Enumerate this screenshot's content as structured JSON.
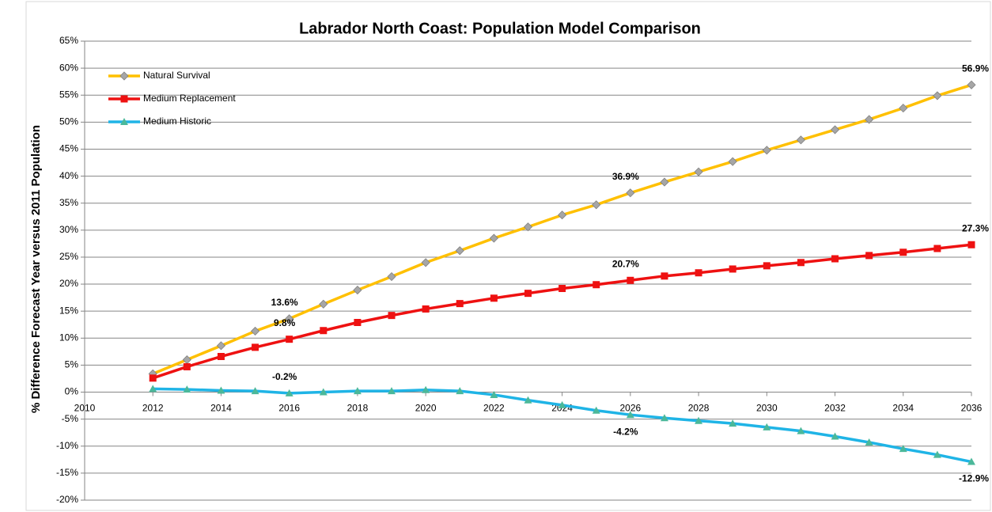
{
  "chart_data": {
    "type": "line",
    "title": "Labrador North Coast: Population Model Comparison",
    "y_label": "% Difference Forecast Year versus 2011 Population",
    "x": [
      2012,
      2013,
      2014,
      2015,
      2016,
      2017,
      2018,
      2019,
      2020,
      2021,
      2022,
      2023,
      2024,
      2025,
      2026,
      2027,
      2028,
      2029,
      2030,
      2031,
      2032,
      2033,
      2034,
      2035,
      2036
    ],
    "series": [
      {
        "name": "Natural Survival",
        "color": "#ffc000",
        "marker": "diamond",
        "marker_color": "#a6a6a6",
        "values": [
          3.4,
          6.0,
          8.6,
          11.3,
          13.6,
          16.3,
          18.9,
          21.4,
          24.0,
          26.2,
          28.5,
          30.6,
          32.8,
          34.7,
          36.9,
          38.9,
          40.8,
          42.7,
          44.8,
          46.7,
          48.6,
          50.5,
          52.6,
          54.9,
          56.9
        ],
        "value_labels": [
          null,
          null,
          null,
          null,
          "13.6%",
          null,
          null,
          null,
          null,
          null,
          null,
          null,
          null,
          null,
          "36.9%",
          null,
          null,
          null,
          null,
          null,
          null,
          null,
          null,
          null,
          "56.9%"
        ]
      },
      {
        "name": "Medium Replacement",
        "color": "#ee1111",
        "marker": "square",
        "marker_color": "#ee1111",
        "values": [
          2.6,
          4.7,
          6.6,
          8.3,
          9.8,
          11.4,
          12.9,
          14.2,
          15.4,
          16.4,
          17.4,
          18.3,
          19.2,
          19.9,
          20.7,
          21.5,
          22.1,
          22.8,
          23.4,
          24.0,
          24.7,
          25.3,
          25.9,
          26.6,
          27.3
        ],
        "value_labels": [
          null,
          null,
          null,
          null,
          "9.8%",
          null,
          null,
          null,
          null,
          null,
          null,
          null,
          null,
          null,
          "20.7%",
          null,
          null,
          null,
          null,
          null,
          null,
          null,
          null,
          null,
          "27.3%"
        ]
      },
      {
        "name": "Medium Historic",
        "color": "#1fb4e6",
        "marker": "triangle",
        "marker_color": "#4bb89a",
        "values": [
          0.6,
          0.5,
          0.3,
          0.2,
          -0.2,
          0.0,
          0.2,
          0.2,
          0.4,
          0.2,
          -0.5,
          -1.5,
          -2.4,
          -3.4,
          -4.2,
          -4.8,
          -5.3,
          -5.8,
          -6.5,
          -7.2,
          -8.2,
          -9.3,
          -10.5,
          -11.6,
          -12.9
        ],
        "value_labels": [
          null,
          null,
          null,
          null,
          "-0.2%",
          null,
          null,
          null,
          null,
          null,
          null,
          null,
          null,
          null,
          "-4.2%",
          null,
          null,
          null,
          null,
          null,
          null,
          null,
          null,
          null,
          "-12.9%"
        ]
      }
    ],
    "xlim": [
      2010,
      2036
    ],
    "xticks": [
      2010,
      2012,
      2014,
      2016,
      2018,
      2020,
      2022,
      2024,
      2026,
      2028,
      2030,
      2032,
      2034,
      2036
    ],
    "ylim": [
      -20,
      65
    ],
    "yticks": [
      {
        "value": -20,
        "label": "-20%"
      },
      {
        "value": -15,
        "label": "-15%"
      },
      {
        "value": -10,
        "label": "-10%"
      },
      {
        "value": -5,
        "label": "-5%"
      },
      {
        "value": 0,
        "label": "0%"
      },
      {
        "value": 5,
        "label": "5%"
      },
      {
        "value": 10,
        "label": "10%"
      },
      {
        "value": 15,
        "label": "15%"
      },
      {
        "value": 20,
        "label": "20%"
      },
      {
        "value": 25,
        "label": "25%"
      },
      {
        "value": 30,
        "label": "30%"
      },
      {
        "value": 35,
        "label": "35%"
      },
      {
        "value": 40,
        "label": "40%"
      },
      {
        "value": 45,
        "label": "45%"
      },
      {
        "value": 50,
        "label": "50%"
      },
      {
        "value": 55,
        "label": "55%"
      },
      {
        "value": 60,
        "label": "60%"
      },
      {
        "value": 65,
        "label": "65%"
      }
    ],
    "grid": true,
    "legend": "upper left"
  }
}
